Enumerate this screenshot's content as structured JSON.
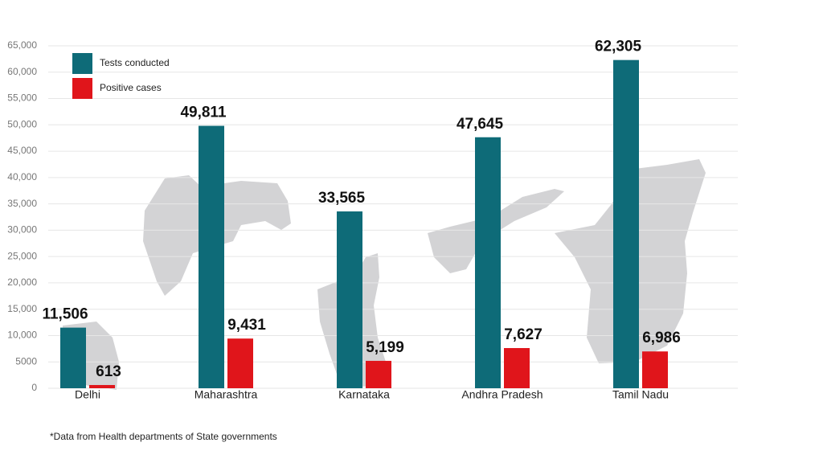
{
  "chart_data": {
    "type": "bar",
    "footnote": "*Data from Health departments of State governments",
    "categories": [
      "Delhi",
      "Maharashtra",
      "Karnataka",
      "Andhra Pradesh",
      "Tamil Nadu"
    ],
    "series": [
      {
        "name": "Tests conducted",
        "color": "#0e6b78",
        "values": [
          11506,
          49811,
          33565,
          47645,
          62305
        ],
        "value_labels": [
          "11,506",
          "49,811",
          "33,565",
          "47,645",
          "62,305"
        ]
      },
      {
        "name": "Positive cases",
        "color": "#e0151b",
        "values": [
          613,
          9431,
          5199,
          7627,
          6986
        ],
        "value_labels": [
          "613",
          "9,431",
          "5,199",
          "7,627",
          "6,986"
        ]
      }
    ],
    "ylim": [
      0,
      65000
    ],
    "yticks": [
      0,
      5000,
      {
        "value": 10000,
        "label": "10,000"
      },
      {
        "value": 15000,
        "label": "15,000"
      },
      {
        "value": 20000,
        "label": "20,000"
      },
      {
        "value": 25000,
        "label": "25,000"
      },
      {
        "value": 30000,
        "label": "30,000"
      },
      {
        "value": 35000,
        "label": "35,000"
      },
      {
        "value": 40000,
        "label": "40,000"
      },
      {
        "value": 45000,
        "label": "45,000"
      },
      {
        "value": 50000,
        "label": "50,000"
      },
      {
        "value": 55000,
        "label": "55,000"
      },
      {
        "value": 60000,
        "label": "60,000"
      },
      {
        "value": 65000,
        "label": "65,000"
      }
    ],
    "grid": true
  }
}
